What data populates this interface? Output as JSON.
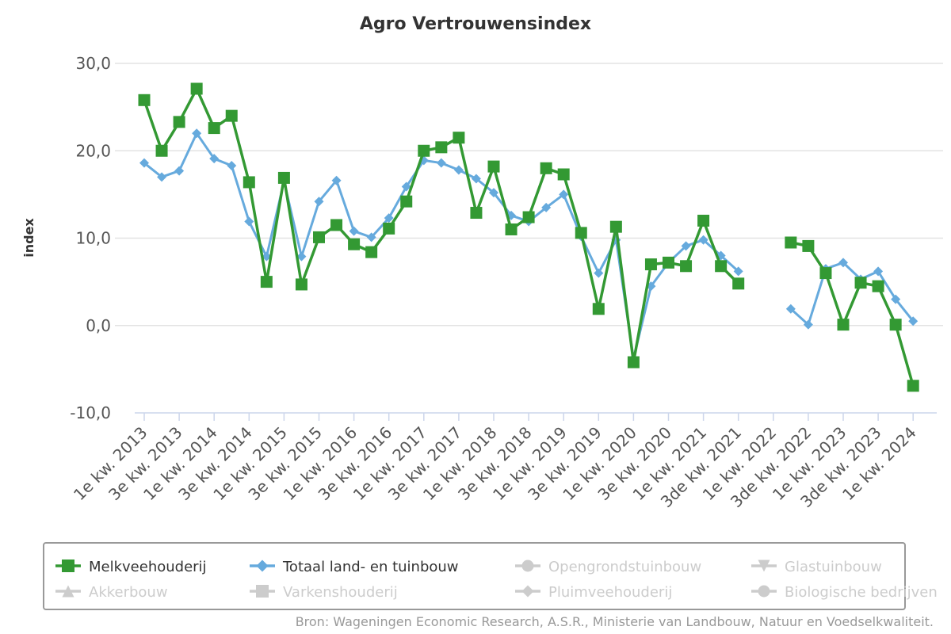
{
  "chart_data": {
    "type": "line",
    "title": "Agro Vertrouwensindex",
    "ylabel": "index",
    "ylim": [
      -10,
      30
    ],
    "yticks": [
      "30,0",
      "20,0",
      "10,0",
      "0,0",
      "-10,0"
    ],
    "grid": true,
    "legend_position": "bottom",
    "x": [
      "1e kw. 2013",
      "2e kw. 2013",
      "3e kw. 2013",
      "4e kw. 2013",
      "1e kw. 2014",
      "2e kw. 2014",
      "3e kw. 2014",
      "4e kw. 2014",
      "1e kw. 2015",
      "2e kw. 2015",
      "3e kw. 2015",
      "4e kw. 2015",
      "1e kw. 2016",
      "2e kw. 2016",
      "3e kw. 2016",
      "4e kw. 2016",
      "1e kw. 2017",
      "2e kw. 2017",
      "3e kw. 2017",
      "4e kw. 2017",
      "1e kw. 2018",
      "2e kw. 2018",
      "3e kw. 2018",
      "4e kw. 2018",
      "1e kw. 2019",
      "2e kw. 2019",
      "3e kw. 2019",
      "4e kw. 2019",
      "1e kw. 2020",
      "2e kw. 2020",
      "3e kw. 2020",
      "4e kw. 2020",
      "1e kw. 2021",
      "2e kw. 2021",
      "3de kw. 2021",
      "4e kw. 2021",
      "1e kw. 2022",
      "2e kw. 2022",
      "3de kw. 2022",
      "4e kw. 2022",
      "1e kw. 2023",
      "2e kw. 2023",
      "3de kw. 2023",
      "4e kw. 2023",
      "1e kw. 2024"
    ],
    "xtick_labels": [
      "1e kw. 2013",
      "3e kw. 2013",
      "1e kw. 2014",
      "3e kw. 2014",
      "1e kw. 2015",
      "3e kw. 2015",
      "1e kw. 2016",
      "3e kw. 2016",
      "1e kw. 2017",
      "3e kw. 2017",
      "1e kw. 2018",
      "3e kw. 2018",
      "1e kw. 2019",
      "3e kw. 2019",
      "1e kw. 2020",
      "3e kw. 2020",
      "1e kw. 2021",
      "3de kw. 2021",
      "1e kw. 2022",
      "3de kw. 2022",
      "1e kw. 2023",
      "3de kw. 2023",
      "1e kw. 2024"
    ],
    "series": [
      {
        "name": "Melkveehouderij",
        "color": "#339933",
        "marker": "square",
        "values": [
          25.8,
          20.0,
          23.3,
          27.1,
          22.6,
          24.0,
          16.4,
          5.0,
          16.9,
          4.7,
          10.1,
          11.5,
          9.3,
          8.4,
          11.1,
          14.2,
          20.0,
          20.4,
          21.5,
          12.9,
          18.2,
          11.0,
          12.4,
          18.0,
          17.3,
          10.6,
          1.9,
          11.3,
          -4.2,
          7.0,
          7.2,
          6.8,
          12.0,
          6.8,
          4.8,
          null,
          null,
          9.5,
          9.1,
          6.0,
          0.1,
          4.9,
          4.5,
          0.1,
          -6.9
        ]
      },
      {
        "name": "Totaal land- en tuinbouw",
        "color": "#66aadd",
        "marker": "diamond",
        "values": [
          18.6,
          17.0,
          17.7,
          22.0,
          19.1,
          18.3,
          11.9,
          7.9,
          16.5,
          7.9,
          14.2,
          16.6,
          10.8,
          10.1,
          12.3,
          15.9,
          18.9,
          18.6,
          17.8,
          16.8,
          15.2,
          12.6,
          11.9,
          13.5,
          15.0,
          10.2,
          6.0,
          9.8,
          -3.8,
          4.5,
          7.2,
          9.1,
          9.8,
          8.0,
          6.2,
          null,
          null,
          1.9,
          0.1,
          6.5,
          7.2,
          5.3,
          6.2,
          3.0,
          0.5
        ]
      }
    ],
    "legend": [
      {
        "name": "Melkveehouderij",
        "color": "#339933",
        "marker": "square",
        "active": true
      },
      {
        "name": "Totaal land- en tuinbouw",
        "color": "#66aadd",
        "marker": "diamond",
        "active": true
      },
      {
        "name": "Opengrondstuinbouw",
        "color": "#cccccc",
        "marker": "circle",
        "active": false
      },
      {
        "name": "Glastuinbouw",
        "color": "#cccccc",
        "marker": "triangle-down",
        "active": false
      },
      {
        "name": "Akkerbouw",
        "color": "#cccccc",
        "marker": "triangle",
        "active": false
      },
      {
        "name": "Varkenshouderij",
        "color": "#cccccc",
        "marker": "square",
        "active": false
      },
      {
        "name": "Pluimveehouderij",
        "color": "#cccccc",
        "marker": "diamond",
        "active": false
      },
      {
        "name": "Biologische bedrijven",
        "color": "#cccccc",
        "marker": "circle",
        "active": false
      }
    ],
    "source": "Bron: Wageningen Economic Research, A.S.R., Ministerie van Landbouw, Natuur en Voedselkwaliteit."
  }
}
